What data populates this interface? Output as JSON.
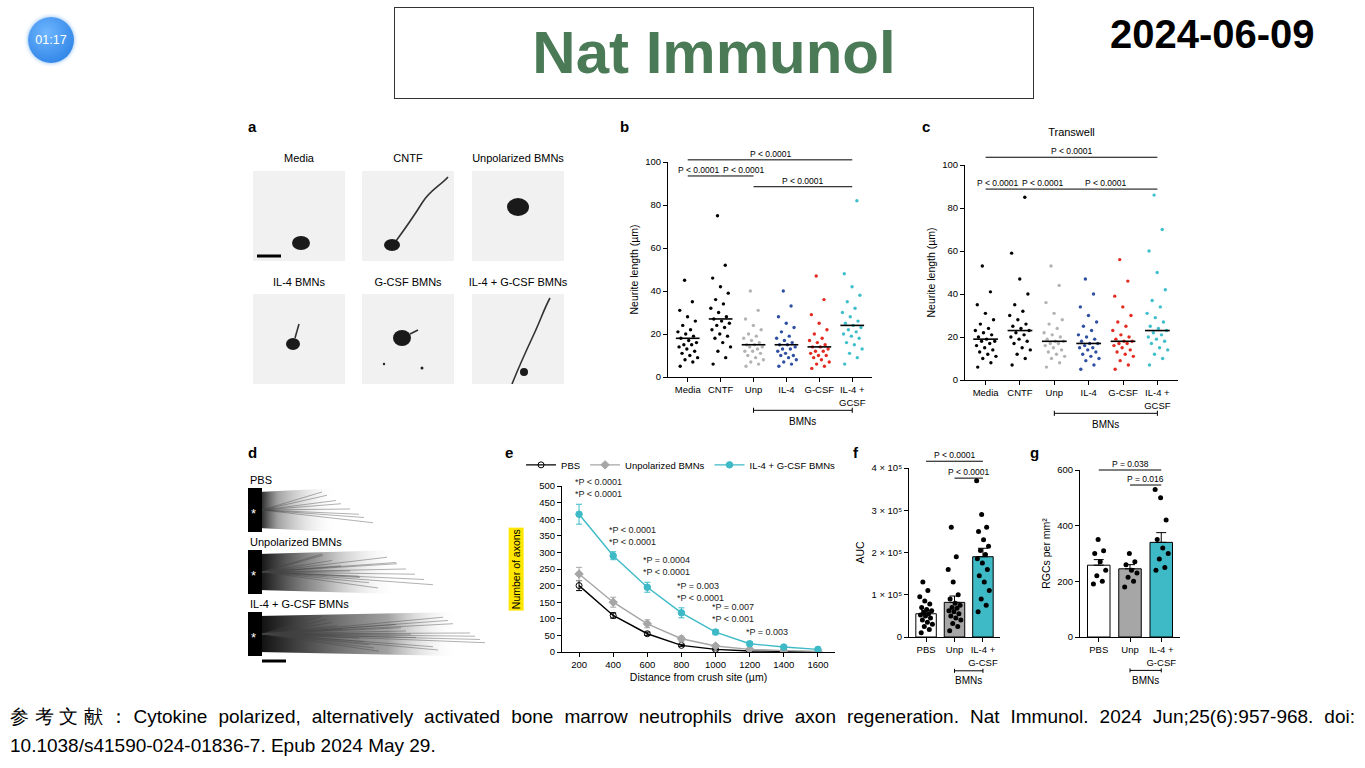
{
  "header": {
    "timer": "01:17",
    "title": "Nat Immunol",
    "date": "2024-06-09"
  },
  "image_panels": [
    {
      "panel": "a",
      "labels": [
        "Media",
        "CNTF",
        "Unpolarized BMNs",
        "IL-4 BMNs",
        "G-CSF BMNs",
        "IL-4 + G-CSF BMNs"
      ]
    },
    {
      "panel": "d",
      "labels": [
        "PBS",
        "Unpolarized BMNs",
        "IL-4 + G-CSF BMNs"
      ],
      "mark": "*"
    }
  ],
  "chart_data": [
    {
      "panel": "b",
      "type": "strip",
      "categories": [
        "Media",
        "CNTF",
        "Unp",
        "IL-4",
        "G-CSF",
        "IL-4 +\nGCSF"
      ],
      "colors": [
        "#000000",
        "#000000",
        "#b3b3b3",
        "#2f4fa2",
        "#e32b22",
        "#3fbfcc"
      ],
      "points": [
        [
          5,
          7,
          8,
          9,
          10,
          11,
          12,
          13,
          14,
          15,
          15,
          16,
          17,
          18,
          19,
          20,
          21,
          22,
          24,
          26,
          28,
          31,
          35,
          45
        ],
        [
          6,
          9,
          12,
          14,
          16,
          18,
          19,
          20,
          22,
          23,
          24,
          25,
          26,
          27,
          28,
          30,
          32,
          34,
          36,
          39,
          42,
          46,
          52,
          75
        ],
        [
          5,
          6,
          7,
          8,
          9,
          10,
          11,
          12,
          12,
          13,
          14,
          14,
          15,
          15,
          16,
          17,
          18,
          19,
          20,
          22,
          24,
          27,
          31,
          40
        ],
        [
          5,
          6,
          7,
          8,
          9,
          10,
          10,
          11,
          12,
          13,
          13,
          14,
          15,
          15,
          16,
          17,
          18,
          19,
          21,
          23,
          25,
          28,
          33,
          40
        ],
        [
          4,
          5,
          6,
          7,
          8,
          9,
          10,
          10,
          11,
          12,
          12,
          13,
          14,
          14,
          15,
          16,
          17,
          18,
          20,
          22,
          25,
          29,
          36,
          47
        ],
        [
          6,
          9,
          11,
          13,
          15,
          16,
          18,
          19,
          20,
          21,
          22,
          23,
          24,
          25,
          26,
          28,
          30,
          32,
          35,
          38,
          42,
          48,
          82
        ]
      ],
      "means": [
        18,
        27,
        15,
        15,
        14,
        24
      ],
      "ylabel": "Neurite length (µm)",
      "ylim": [
        0,
        100
      ],
      "yticks": [
        0,
        20,
        40,
        60,
        80,
        100
      ],
      "comparisons": [
        {
          "from": "Media",
          "to": "IL-4 +\nGCSF",
          "label": "P < 0.0001"
        },
        {
          "from": "Media",
          "to": "CNTF",
          "label": "P < 0.0001"
        },
        {
          "from": "CNTF",
          "to": "Unp",
          "label": "P < 0.0001"
        },
        {
          "from": "Unp",
          "to": "IL-4 +\nGCSF",
          "label": "P < 0.0001"
        }
      ],
      "group_label": {
        "text": "BMNs",
        "from": "Unp",
        "to": "IL-4 +\nGCSF"
      }
    },
    {
      "panel": "c",
      "type": "strip",
      "title": "Transwell",
      "categories": [
        "Media",
        "CNTF",
        "Unp",
        "IL-4",
        "G-CSF",
        "IL-4 +\nGCSF"
      ],
      "colors": [
        "#000000",
        "#000000",
        "#b3b3b3",
        "#2f4fa2",
        "#e32b22",
        "#3fbfcc"
      ],
      "points": [
        [
          6,
          8,
          10,
          11,
          12,
          13,
          14,
          15,
          16,
          17,
          18,
          18,
          19,
          20,
          21,
          22,
          23,
          24,
          26,
          28,
          31,
          35,
          41,
          53
        ],
        [
          7,
          10,
          12,
          14,
          15,
          17,
          18,
          19,
          20,
          21,
          22,
          23,
          24,
          25,
          26,
          28,
          30,
          32,
          35,
          40,
          47,
          59,
          85
        ],
        [
          6,
          8,
          10,
          11,
          12,
          13,
          14,
          15,
          16,
          17,
          17,
          18,
          18,
          19,
          20,
          21,
          22,
          24,
          26,
          28,
          31,
          36,
          44,
          53
        ],
        [
          5,
          7,
          9,
          10,
          11,
          12,
          13,
          14,
          15,
          15,
          16,
          17,
          17,
          18,
          19,
          20,
          21,
          23,
          25,
          27,
          30,
          34,
          40,
          47
        ],
        [
          5,
          7,
          9,
          11,
          12,
          13,
          14,
          15,
          16,
          17,
          17,
          18,
          18,
          19,
          20,
          21,
          23,
          25,
          27,
          30,
          34,
          39,
          46,
          56
        ],
        [
          7,
          10,
          12,
          14,
          15,
          17,
          18,
          19,
          20,
          21,
          22,
          23,
          24,
          25,
          27,
          29,
          31,
          34,
          37,
          42,
          50,
          60,
          70,
          86
        ]
      ],
      "means": [
        19,
        23,
        18,
        17,
        18,
        23
      ],
      "ylabel": "Neurite length (µm)",
      "ylim": [
        0,
        100
      ],
      "yticks": [
        0,
        20,
        40,
        60,
        80,
        100
      ],
      "comparisons": [
        {
          "from": "Media",
          "to": "IL-4 +\nGCSF",
          "label": "P < 0.0001"
        },
        {
          "from": "Media",
          "to": "CNTF",
          "label": "P < 0.0001"
        },
        {
          "from": "CNTF",
          "to": "Unp",
          "label": "P < 0.0001"
        },
        {
          "from": "Unp",
          "to": "IL-4 +\nGCSF",
          "label": "P < 0.0001"
        }
      ],
      "group_label": {
        "text": "BMNs",
        "from": "Unp",
        "to": "IL-4 +\nGCSF"
      }
    },
    {
      "panel": "e",
      "type": "line",
      "x": [
        200,
        400,
        600,
        800,
        1000,
        1200,
        1400,
        1600
      ],
      "xlabel": "Distance from crush site (µm)",
      "ylabel": "Number of axons",
      "xlim": [
        100,
        1700
      ],
      "xticks": [
        200,
        400,
        600,
        800,
        1000,
        1200,
        1400,
        1600
      ],
      "ylim": [
        0,
        500
      ],
      "yticks": [
        0,
        50,
        100,
        150,
        200,
        250,
        300,
        350,
        400,
        450,
        500
      ],
      "legend": "top",
      "series": [
        {
          "name": "PBS",
          "color": "#000000",
          "marker": "circle-open",
          "values": [
            200,
            110,
            55,
            20,
            8,
            3,
            2,
            1
          ],
          "errors": [
            15,
            8,
            5,
            3,
            2,
            1,
            1,
            1
          ]
        },
        {
          "name": "Unpolarized BMNs",
          "color": "#a6a6a6",
          "marker": "diamond",
          "values": [
            235,
            150,
            85,
            40,
            18,
            8,
            4,
            2
          ],
          "errors": [
            20,
            15,
            12,
            8,
            5,
            3,
            2,
            1
          ]
        },
        {
          "name": "IL-4 + G-CSF BMNs",
          "color": "#3dbac6",
          "marker": "circle",
          "values": [
            415,
            290,
            195,
            118,
            60,
            25,
            15,
            8
          ],
          "errors": [
            30,
            12,
            15,
            15,
            8,
            6,
            4,
            3
          ]
        }
      ],
      "annotations": [
        {
          "x": 200,
          "text": [
            "*P < 0.0001",
            "*P < 0.0001"
          ]
        },
        {
          "x": 400,
          "text": [
            "*P < 0.0001",
            "*P < 0.0001"
          ]
        },
        {
          "x": 600,
          "text": [
            "*P = 0.0004",
            "*P < 0.0001"
          ]
        },
        {
          "x": 800,
          "text": [
            "*P = 0.003",
            "*P < 0.0001"
          ]
        },
        {
          "x": 1000,
          "text": [
            "*P = 0.007",
            "*P < 0.001"
          ]
        },
        {
          "x": 1200,
          "text": [
            "*P = 0.003"
          ]
        }
      ]
    },
    {
      "panel": "f",
      "type": "bar",
      "categories": [
        "PBS",
        "Unp",
        "IL-4 +\nG-CSF"
      ],
      "colors": [
        "#ffffff",
        "#a6a6a6",
        "#3dbac6"
      ],
      "values": [
        55000,
        82000,
        190000
      ],
      "errors": [
        8000,
        15000,
        20000
      ],
      "points": [
        [
          10000,
          18000,
          25000,
          30000,
          35000,
          40000,
          45000,
          50000,
          52000,
          55000,
          58000,
          62000,
          65000,
          70000,
          78000,
          85000,
          95000,
          110000,
          130000
        ],
        [
          15000,
          25000,
          32000,
          40000,
          45000,
          50000,
          55000,
          60000,
          62000,
          68000,
          70000,
          75000,
          80000,
          90000,
          100000,
          130000,
          160000,
          190000,
          260000
        ],
        [
          60000,
          75000,
          90000,
          110000,
          130000,
          145000,
          160000,
          175000,
          185000,
          195000,
          205000,
          215000,
          230000,
          250000,
          260000,
          290000,
          370000
        ]
      ],
      "ylabel": "AUC",
      "ylim": [
        0,
        400000
      ],
      "yticks": [
        0,
        {
          "value": 100000,
          "label": "1 × 10⁵"
        },
        {
          "value": 200000,
          "label": "2 × 10⁵"
        },
        {
          "value": 300000,
          "label": "3 × 10⁵"
        },
        {
          "value": 400000,
          "label": "4 × 10⁵"
        }
      ],
      "comparisons": [
        {
          "from": "PBS",
          "to": "IL-4 +\nG-CSF",
          "label": "P < 0.0001"
        },
        {
          "from": "Unp",
          "to": "IL-4 +\nG-CSF",
          "label": "P < 0.0001"
        }
      ],
      "group_label": {
        "text": "BMNs",
        "from": "Unp",
        "to": "IL-4 +\nG-CSF"
      }
    },
    {
      "panel": "g",
      "type": "bar",
      "categories": [
        "PBS",
        "Unp",
        "IL-4 +\nG-CSF"
      ],
      "colors": [
        "#ffffff",
        "#a6a6a6",
        "#3dbac6"
      ],
      "values": [
        258,
        245,
        340
      ],
      "errors": [
        20,
        15,
        35
      ],
      "points": [
        [
          190,
          200,
          220,
          240,
          270,
          300,
          310,
          350
        ],
        [
          180,
          200,
          215,
          230,
          240,
          260,
          270,
          300
        ],
        [
          240,
          250,
          280,
          300,
          320,
          350,
          420,
          500,
          530
        ]
      ],
      "ylabel": "RGCs per mm²",
      "ylim": [
        0,
        600
      ],
      "yticks": [
        0,
        200,
        400,
        600
      ],
      "comparisons": [
        {
          "from": "PBS",
          "to": "IL-4 +\nG-CSF",
          "label": "P = 0.038"
        },
        {
          "from": "Unp",
          "to": "IL-4 +\nG-CSF",
          "label": "P = 0.016"
        }
      ],
      "group_label": {
        "text": "BMNs",
        "from": "Unp",
        "to": "IL-4 +\nG-CSF"
      }
    }
  ],
  "footer": "参考文献：Cytokine polarized, alternatively activated bone marrow neutrophils drive axon regeneration. Nat Immunol. 2024 Jun;25(6):957-968. doi: 10.1038/s41590-024-01836-7. Epub 2024 May 29."
}
